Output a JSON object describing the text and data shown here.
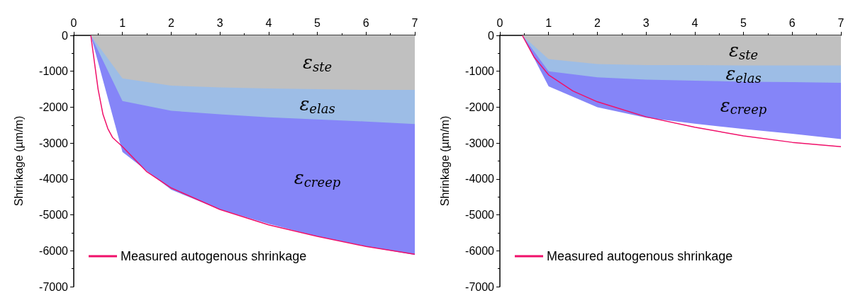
{
  "chart_data": [
    {
      "type": "area",
      "ylabel": "Shrinkage (µm/m)",
      "stacked": true,
      "xlim": [
        0,
        7
      ],
      "xticks": [
        0,
        1,
        2,
        3,
        4,
        5,
        6,
        7
      ],
      "ylim": [
        -7000,
        0
      ],
      "yticks": [
        -7000,
        -6000,
        -5000,
        -4000,
        -3000,
        -2000,
        -1000,
        0
      ],
      "grid": false,
      "legend": "bottom left",
      "x": [
        0.35,
        1,
        2,
        3,
        4,
        5,
        6,
        7
      ],
      "series": [
        {
          "name": "ε$_{ste}$",
          "color": "#c0c0c0",
          "values": [
            0,
            -1200,
            -1400,
            -1450,
            -1480,
            -1500,
            -1520,
            -1520
          ]
        },
        {
          "name": "ε$_{elas}$",
          "color": "#9dbde6",
          "values": [
            0,
            -630,
            -700,
            -750,
            -800,
            -840,
            -880,
            -950
          ]
        },
        {
          "name": "ε$_{creep}$",
          "color": "#8585f8",
          "values": [
            0,
            -1420,
            -2200,
            -2650,
            -2970,
            -3260,
            -3480,
            -3650
          ]
        },
        {
          "name": "Measured autogenous shrinkage",
          "type": "line",
          "color": "#f0106a",
          "x": [
            0.35,
            0.4,
            0.5,
            0.6,
            0.7,
            0.8,
            1,
            1.5,
            2,
            3,
            4,
            5,
            6,
            7
          ],
          "values": [
            0,
            -500,
            -1500,
            -2200,
            -2600,
            -2850,
            -3100,
            -3800,
            -4250,
            -4850,
            -5280,
            -5600,
            -5880,
            -6100
          ]
        }
      ]
    },
    {
      "type": "area",
      "ylabel": "Shrinkage (µm/m)",
      "stacked": true,
      "xlim": [
        0,
        7
      ],
      "xticks": [
        0,
        1,
        2,
        3,
        4,
        5,
        6,
        7
      ],
      "ylim": [
        -7000,
        0
      ],
      "yticks": [
        -7000,
        -6000,
        -5000,
        -4000,
        -3000,
        -2000,
        -1000,
        0
      ],
      "grid": false,
      "legend": "bottom left",
      "x": [
        0.46,
        1,
        2,
        3,
        4,
        5,
        6,
        7
      ],
      "series": [
        {
          "name": "ε$_{ste}$",
          "color": "#c0c0c0",
          "values": [
            0,
            -660,
            -800,
            -830,
            -830,
            -840,
            -840,
            -840
          ]
        },
        {
          "name": "ε$_{elas}$",
          "color": "#9dbde6",
          "values": [
            0,
            -340,
            -370,
            -400,
            -430,
            -450,
            -460,
            -480
          ]
        },
        {
          "name": "ε$_{creep}$",
          "color": "#8585f8",
          "values": [
            0,
            -420,
            -830,
            -1060,
            -1200,
            -1320,
            -1440,
            -1570
          ]
        },
        {
          "name": "Measured autogenous shrinkage",
          "type": "line",
          "color": "#f0106a",
          "x": [
            0.46,
            0.7,
            1,
            1.5,
            2,
            3,
            4,
            5,
            6,
            7
          ],
          "values": [
            0,
            -600,
            -1100,
            -1550,
            -1850,
            -2270,
            -2560,
            -2800,
            -2980,
            -3100
          ]
        }
      ]
    }
  ]
}
